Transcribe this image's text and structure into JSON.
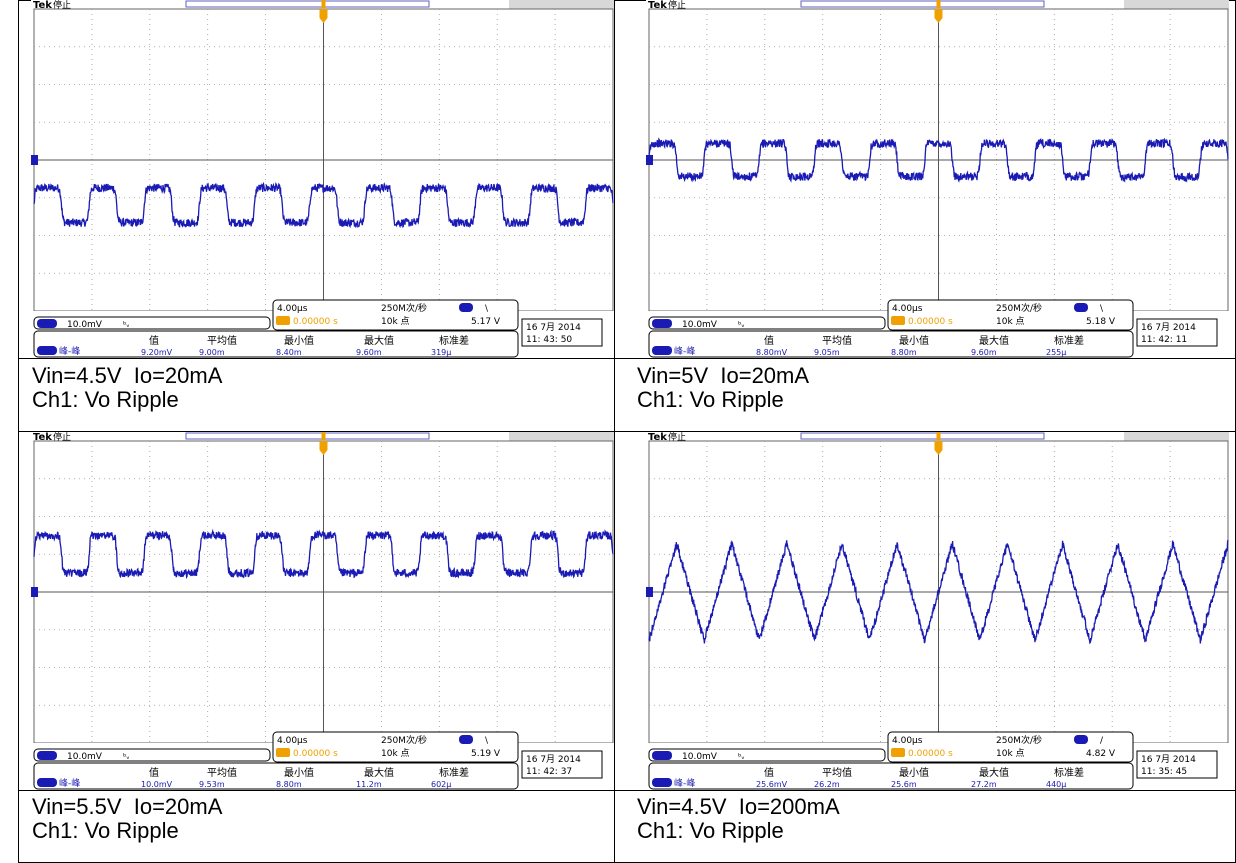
{
  "panels": [
    {
      "brand": "Tek",
      "status": "停止",
      "timebase": "4.00µs",
      "sample_rate": "250M次/秒",
      "points": "10k 点",
      "trigger_offset": "0.00000 s",
      "trigger_slope": "\\",
      "trigger_level": "5.17 V",
      "ch1_scale": "10.0mV",
      "ch1_label": "1",
      "date_line1": "16 7月   2014",
      "date_line2": "11: 43: 50",
      "measure_name": "峰-峰",
      "measure_headers": [
        "值",
        "平均值",
        "最小值",
        "最大值",
        "标准差"
      ],
      "measure_values": [
        "9.20mV",
        "9.00m",
        "8.40m",
        "9.60m",
        "319µ"
      ],
      "caption_line1": "Vin=4.5V  Io=20mA",
      "caption_line2": "Ch1: Vo Ripple"
    },
    {
      "brand": "Tek",
      "status": "停止",
      "timebase": "4.00µs",
      "sample_rate": "250M次/秒",
      "points": "10k 点",
      "trigger_offset": "0.00000 s",
      "trigger_slope": "\\",
      "trigger_level": "5.18 V",
      "ch1_scale": "10.0mV",
      "ch1_label": "1",
      "date_line1": "16 7月   2014",
      "date_line2": "11: 42: 11",
      "measure_name": "峰-峰",
      "measure_headers": [
        "值",
        "平均值",
        "最小值",
        "最大值",
        "标准差"
      ],
      "measure_values": [
        "8.80mV",
        "9.05m",
        "8.80m",
        "9.60m",
        "255µ"
      ],
      "caption_line1": "Vin=5V  Io=20mA",
      "caption_line2": "Ch1: Vo Ripple"
    },
    {
      "brand": "Tek",
      "status": "停止",
      "timebase": "4.00µs",
      "sample_rate": "250M次/秒",
      "points": "10k 点",
      "trigger_offset": "0.00000 s",
      "trigger_slope": "\\",
      "trigger_level": "5.19 V",
      "ch1_scale": "10.0mV",
      "ch1_label": "1",
      "date_line1": "16 7月   2014",
      "date_line2": "11: 42: 37",
      "measure_name": "峰-峰",
      "measure_headers": [
        "值",
        "平均值",
        "最小值",
        "最大值",
        "标准差"
      ],
      "measure_values": [
        "10.0mV",
        "9.53m",
        "8.80m",
        "11.2m",
        "602µ"
      ],
      "caption_line1": "Vin=5.5V  Io=20mA",
      "caption_line2": "Ch1: Vo Ripple"
    },
    {
      "brand": "Tek",
      "status": "停止",
      "timebase": "4.00µs",
      "sample_rate": "250M次/秒",
      "points": "10k 点",
      "trigger_offset": "0.00000 s",
      "trigger_slope": "/",
      "trigger_level": "4.82 V",
      "ch1_scale": "10.0mV",
      "ch1_label": "1",
      "date_line1": "16 7月   2014",
      "date_line2": "11: 35: 45",
      "measure_name": "峰-峰",
      "measure_headers": [
        "值",
        "平均值",
        "最小值",
        "最大值",
        "标准差"
      ],
      "measure_values": [
        "25.6mV",
        "26.2m",
        "25.6m",
        "27.2m",
        "440µ"
      ],
      "caption_line1": "Vin=4.5V  Io=200mA",
      "caption_line2": "Ch1: Vo Ripple"
    }
  ],
  "colors": {
    "trace": "#1a1ab4",
    "trigger": "#f0a000",
    "ch_badge": "#1a1ab4",
    "grid": "#888888"
  },
  "chart_data": [
    {
      "type": "line",
      "series": [
        {
          "values": []
        }
      ],
      "xlim": [
        -20,
        20
      ],
      "ylim": [
        -40,
        40
      ],
      "waveform": "rounded-square",
      "offset_mV": -12,
      "amplitude_mV": 4.6,
      "cycles": 10.5
    },
    {
      "type": "line",
      "series": [
        {
          "values": []
        }
      ],
      "xlim": [
        -20,
        20
      ],
      "ylim": [
        -40,
        40
      ],
      "waveform": "rounded-square",
      "offset_mV": 0,
      "amplitude_mV": 4.4,
      "cycles": 10.5
    },
    {
      "type": "line",
      "series": [
        {
          "values": []
        }
      ],
      "xlim": [
        -20,
        20
      ],
      "ylim": [
        -40,
        40
      ],
      "waveform": "rounded-square",
      "offset_mV": 10,
      "amplitude_mV": 5.0,
      "cycles": 10.5
    },
    {
      "type": "line",
      "series": [
        {
          "values": []
        }
      ],
      "xlim": [
        -20,
        20
      ],
      "ylim": [
        -40,
        40
      ],
      "waveform": "triangle",
      "offset_mV": 0,
      "amplitude_mV": 12.8,
      "cycles": 10.5
    }
  ]
}
